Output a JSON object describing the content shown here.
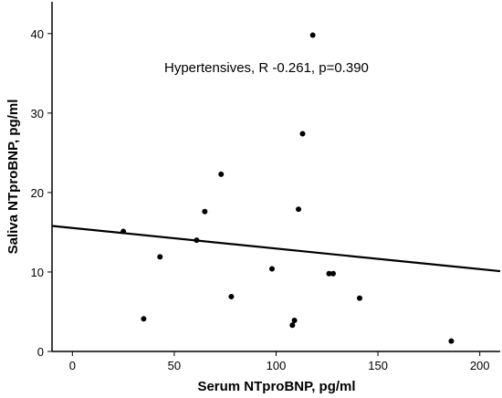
{
  "chart_data": {
    "type": "scatter",
    "title": "",
    "annotation": "Hypertensives, R -0.261, p=0.390",
    "xlabel": "Serum NTproBNP, pg/ml",
    "ylabel": "Saliva NTproBNP, pg/ml",
    "xlim": [
      -10,
      210
    ],
    "ylim": [
      0,
      44
    ],
    "xticks": [
      0,
      50,
      100,
      150,
      200
    ],
    "yticks": [
      0,
      10,
      20,
      30,
      40
    ],
    "grid": false,
    "points": [
      {
        "x": 25,
        "y": 15.1
      },
      {
        "x": 35,
        "y": 4.1
      },
      {
        "x": 43,
        "y": 11.9
      },
      {
        "x": 61,
        "y": 14.0
      },
      {
        "x": 65,
        "y": 17.6
      },
      {
        "x": 73,
        "y": 22.3
      },
      {
        "x": 78,
        "y": 6.9
      },
      {
        "x": 98,
        "y": 10.4
      },
      {
        "x": 108,
        "y": 3.3
      },
      {
        "x": 109,
        "y": 3.9
      },
      {
        "x": 111,
        "y": 17.9
      },
      {
        "x": 113,
        "y": 27.4
      },
      {
        "x": 118,
        "y": 39.8
      },
      {
        "x": 126,
        "y": 9.8
      },
      {
        "x": 128,
        "y": 9.8
      },
      {
        "x": 141,
        "y": 6.7
      },
      {
        "x": 186,
        "y": 1.3
      }
    ],
    "fit_line": {
      "x": [
        -10,
        210
      ],
      "y": [
        15.8,
        10.1
      ]
    },
    "colors": {
      "points": "#000000",
      "line": "#000000",
      "axes": "#000000"
    }
  }
}
